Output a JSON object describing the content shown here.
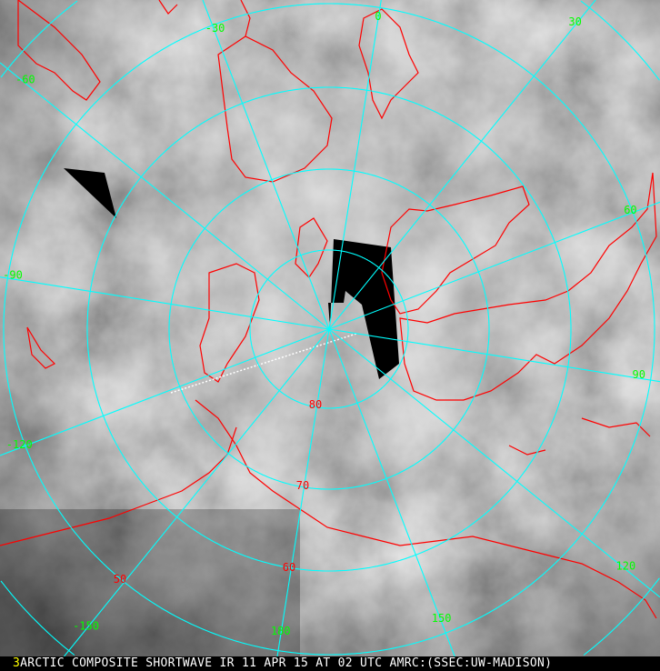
{
  "caption": {
    "frame_number": "3",
    "text": "ARCTIC COMPOSITE SHORTWAVE IR 11 APR 15 AT 02 UTC AMRC:(SSEC:UW-MADISON)"
  },
  "projection": "polar stereographic, north pole",
  "colors": {
    "grid": "#00ffff",
    "longitude_labels": "#00ff00",
    "latitude_labels": "#ff0000",
    "coastlines": "#ff0000",
    "frame_number": "#ffff00",
    "no_data": "#000000"
  },
  "longitude_labels": [
    "-30",
    "0",
    "30",
    "60",
    "90",
    "120",
    "150",
    "180",
    "-150",
    "-120",
    "-90",
    "-60"
  ],
  "latitude_labels": [
    "80",
    "70",
    "60",
    "50"
  ]
}
